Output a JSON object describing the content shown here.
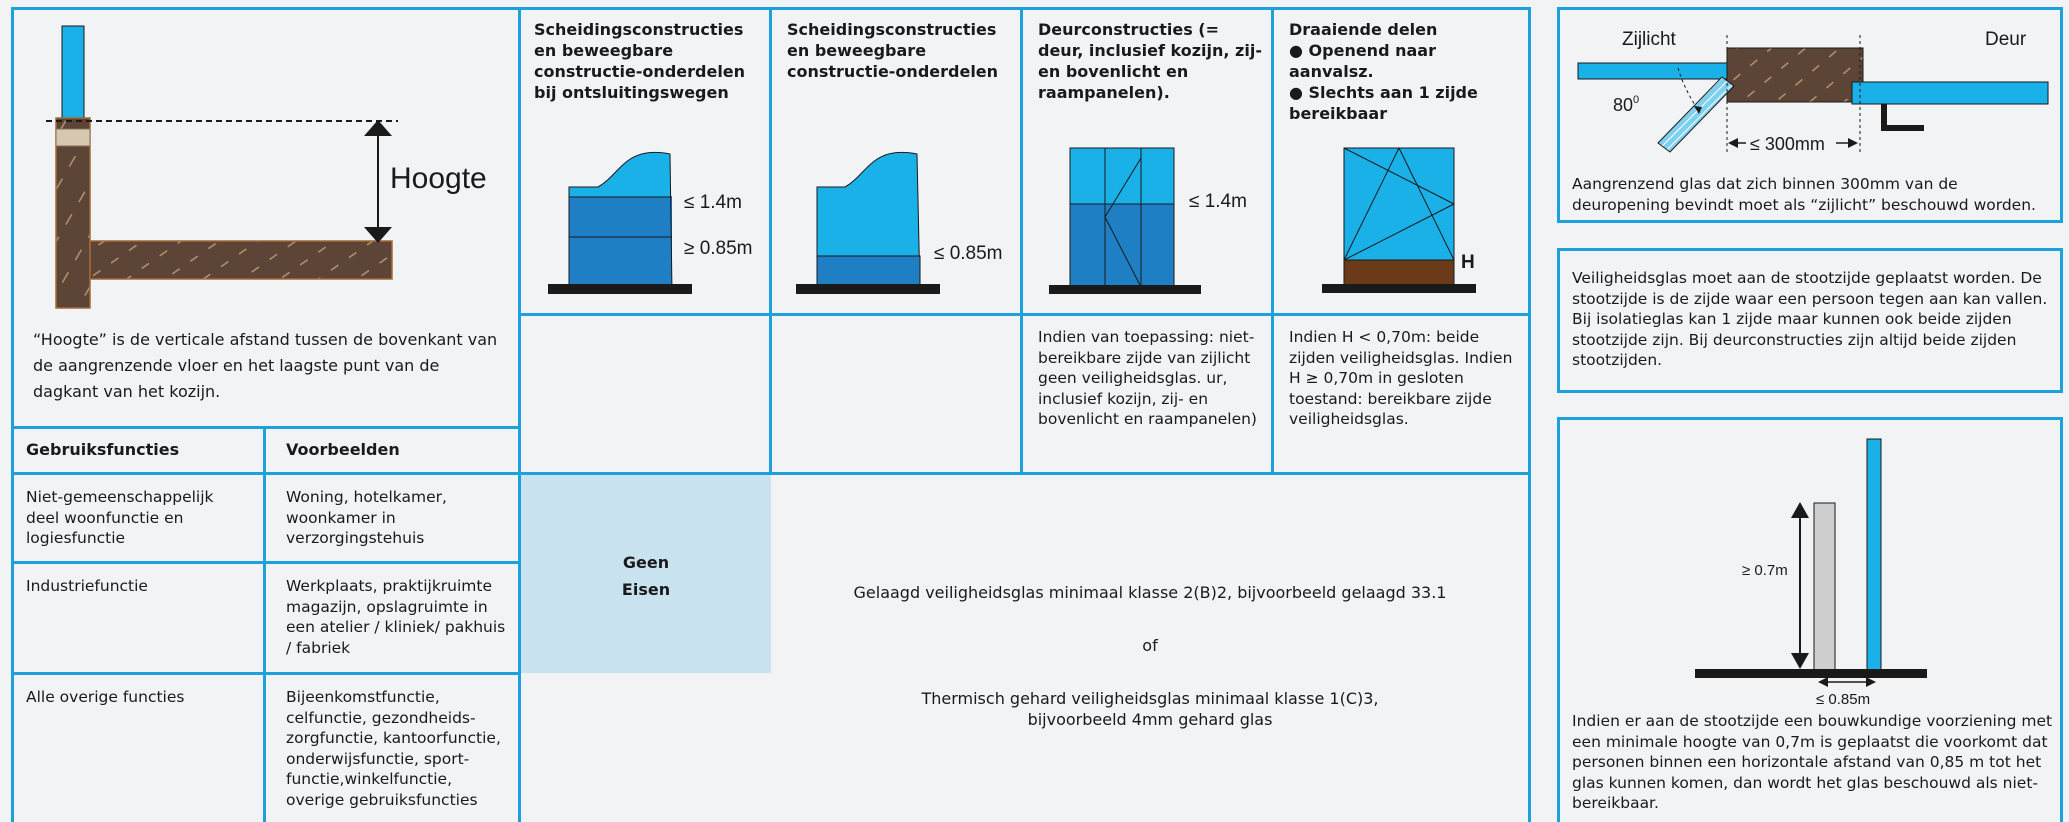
{
  "hoogte": {
    "label": "Hoogte",
    "description": "“Hoogte” is de verticale afstand tussen de bovenkant van de aangrenzende vloer en het laagste punt van de dagkant van het kozijn."
  },
  "columns": [
    {
      "title": "Scheidingsconstructies en beweegbare constructie-onderdelen bij ontsluitingswegen",
      "labels": [
        "≤ 1.4m",
        "≥ 0.85m"
      ]
    },
    {
      "title": "Scheidingsconstructies en beweegbare constructie-onderdelen",
      "labels": [
        "≤ 0.85m"
      ]
    },
    {
      "title": "Deurconstructies (= deur, inclusief kozijn, zij- en bovenlicht en raampanelen).",
      "labels": [
        "≤ 1.4m"
      ],
      "note": "Indien van toepassing: niet-bereikbare zijde van zijlicht geen veiligheidsglas. ur, inclusief kozijn, zij- en bovenlicht en raampanelen)"
    },
    {
      "title_lines": [
        "Draaiende delen",
        "● Openend naar aanvalsz.",
        "● Slechts aan 1 zijde bereikbaar"
      ],
      "labels": [
        "H"
      ],
      "note": "Indien H < 0,70m: beide zijden veiligheidsglas. Indien H ≥ 0,70m in gesloten toestand: bereikbare zijde veiligheidsglas."
    }
  ],
  "table": {
    "headers": [
      "Gebruiksfuncties",
      "Voorbeelden"
    ],
    "rows": [
      {
        "function": "Niet-gemeenschappelijk deel woonfunctie en logiesfunctie",
        "examples": "Woning, hotelkamer, woonkamer in verzorgingstehuis"
      },
      {
        "function": "Industriefunctie",
        "examples": "Werkplaats, praktijkruimte magazijn, opslagruimte in een atelier / kliniek/ pakhuis / fabriek"
      },
      {
        "function": "Alle overige functies",
        "examples": "Bijeenkomstfunctie, celfunctie, gezondheids-zorgfunctie, kantoorfunctie, onderwijsfunctie, sport-functie,winkelfunctie, overige gebruiksfuncties"
      }
    ]
  },
  "geen_eisen": [
    "Geen",
    "Eisen"
  ],
  "requirements": {
    "line1": "Gelaagd veiligheidsglas minimaal klasse 2(B)2, bijvoorbeeld gelaagd 33.1",
    "or": "of",
    "line2a": "Thermisch gehard veiligheidsglas minimaal klasse 1(C)3,",
    "line2b": "bijvoorbeeld 4mm gehard glas"
  },
  "right_boxes": {
    "zijlicht": {
      "label_zijlicht": "Zijlicht",
      "label_deur": "Deur",
      "angle": "80",
      "angle_sup": "0",
      "distance": "≤ 300mm",
      "text": "Aangrenzend glas dat zich binnen 300mm van de deuropening bevindt moet als “zijlicht” beschouwd worden."
    },
    "stootzijde": {
      "text": "Veiligheidsglas moet aan de stootzijde geplaatst worden. De stootzijde is de zijde waar een persoon tegen aan kan vallen. Bij isolatieglas kan 1 zijde maar kunnen ook beide zijden stootzijde zijn. Bij deurconstructies zijn altijd beide zijden stootzijden."
    },
    "bouwkundig": {
      "height_label": "≥ 0.7m",
      "width_label": "≤ 0.85m",
      "text": "Indien er aan de stootzijde een bouwkundige voorziening met een minimale hoogte van 0,7m is geplaatst die voorkomt dat personen binnen een horizontale afstand van 0,85 m tot het glas kunnen komen, dan wordt het glas beschouwd als niet-bereikbaar."
    }
  }
}
